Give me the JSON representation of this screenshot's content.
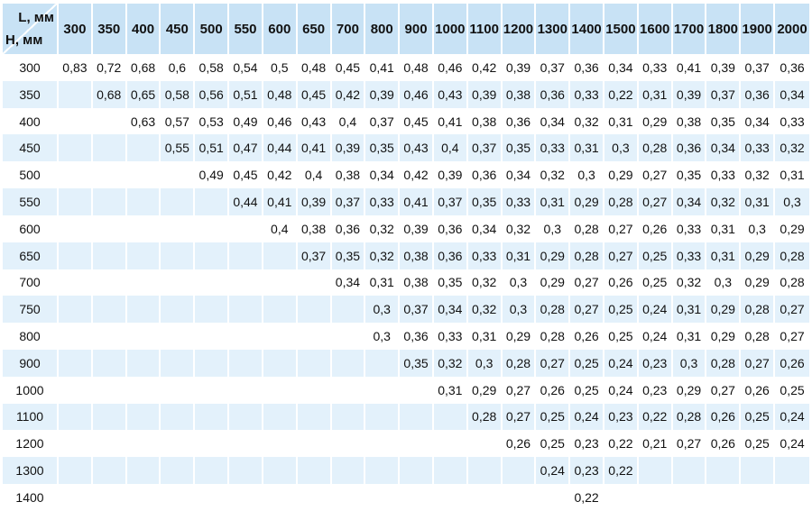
{
  "corner": {
    "col_axis_label": "L, мм",
    "row_axis_label": "Н, мм"
  },
  "colors": {
    "header_bg": "#c8e2f5",
    "stripe_bg": "#e3f1fb",
    "separator": "#ffffff",
    "text": "#111111"
  },
  "chart_data": {
    "type": "table",
    "title": "",
    "col_axis_label": "L, мм",
    "row_axis_label": "Н, мм",
    "columns": [
      "300",
      "350",
      "400",
      "450",
      "500",
      "550",
      "600",
      "650",
      "700",
      "800",
      "900",
      "1000",
      "1100",
      "1200",
      "1300",
      "1400",
      "1500",
      "1600",
      "1700",
      "1800",
      "1900",
      "2000"
    ],
    "rows": [
      {
        "label": "300",
        "values": [
          "0,83",
          "0,72",
          "0,68",
          "0,6",
          "0,58",
          "0,54",
          "0,5",
          "0,48",
          "0,45",
          "0,41",
          "0,48",
          "0,46",
          "0,42",
          "0,39",
          "0,37",
          "0,36",
          "0,34",
          "0,33",
          "0,41",
          "0,39",
          "0,37",
          "0,36"
        ]
      },
      {
        "label": "350",
        "values": [
          "",
          "0,68",
          "0,65",
          "0,58",
          "0,56",
          "0,51",
          "0,48",
          "0,45",
          "0,42",
          "0,39",
          "0,46",
          "0,43",
          "0,39",
          "0,38",
          "0,36",
          "0,33",
          "0,22",
          "0,31",
          "0,39",
          "0,37",
          "0,36",
          "0,34"
        ]
      },
      {
        "label": "400",
        "values": [
          "",
          "",
          "0,63",
          "0,57",
          "0,53",
          "0,49",
          "0,46",
          "0,43",
          "0,4",
          "0,37",
          "0,45",
          "0,41",
          "0,38",
          "0,36",
          "0,34",
          "0,32",
          "0,31",
          "0,29",
          "0,38",
          "0,35",
          "0,34",
          "0,33"
        ]
      },
      {
        "label": "450",
        "values": [
          "",
          "",
          "",
          "0,55",
          "0,51",
          "0,47",
          "0,44",
          "0,41",
          "0,39",
          "0,35",
          "0,43",
          "0,4",
          "0,37",
          "0,35",
          "0,33",
          "0,31",
          "0,3",
          "0,28",
          "0,36",
          "0,34",
          "0,33",
          "0,32"
        ]
      },
      {
        "label": "500",
        "values": [
          "",
          "",
          "",
          "",
          "0,49",
          "0,45",
          "0,42",
          "0,4",
          "0,38",
          "0,34",
          "0,42",
          "0,39",
          "0,36",
          "0,34",
          "0,32",
          "0,3",
          "0,29",
          "0,27",
          "0,35",
          "0,33",
          "0,32",
          "0,31"
        ]
      },
      {
        "label": "550",
        "values": [
          "",
          "",
          "",
          "",
          "",
          "0,44",
          "0,41",
          "0,39",
          "0,37",
          "0,33",
          "0,41",
          "0,37",
          "0,35",
          "0,33",
          "0,31",
          "0,29",
          "0,28",
          "0,27",
          "0,34",
          "0,32",
          "0,31",
          "0,3"
        ]
      },
      {
        "label": "600",
        "values": [
          "",
          "",
          "",
          "",
          "",
          "",
          "0,4",
          "0,38",
          "0,36",
          "0,32",
          "0,39",
          "0,36",
          "0,34",
          "0,32",
          "0,3",
          "0,28",
          "0,27",
          "0,26",
          "0,33",
          "0,31",
          "0,3",
          "0,29"
        ]
      },
      {
        "label": "650",
        "values": [
          "",
          "",
          "",
          "",
          "",
          "",
          "",
          "0,37",
          "0,35",
          "0,32",
          "0,38",
          "0,36",
          "0,33",
          "0,31",
          "0,29",
          "0,28",
          "0,27",
          "0,25",
          "0,33",
          "0,31",
          "0,29",
          "0,28"
        ]
      },
      {
        "label": "700",
        "values": [
          "",
          "",
          "",
          "",
          "",
          "",
          "",
          "",
          "0,34",
          "0,31",
          "0,38",
          "0,35",
          "0,32",
          "0,3",
          "0,29",
          "0,27",
          "0,26",
          "0,25",
          "0,32",
          "0,3",
          "0,29",
          "0,28"
        ]
      },
      {
        "label": "750",
        "values": [
          "",
          "",
          "",
          "",
          "",
          "",
          "",
          "",
          "",
          "0,3",
          "0,37",
          "0,34",
          "0,32",
          "0,3",
          "0,28",
          "0,27",
          "0,25",
          "0,24",
          "0,31",
          "0,29",
          "0,28",
          "0,27"
        ]
      },
      {
        "label": "800",
        "values": [
          "",
          "",
          "",
          "",
          "",
          "",
          "",
          "",
          "",
          "0,3",
          "0,36",
          "0,33",
          "0,31",
          "0,29",
          "0,28",
          "0,26",
          "0,25",
          "0,24",
          "0,31",
          "0,29",
          "0,28",
          "0,27"
        ]
      },
      {
        "label": "900",
        "values": [
          "",
          "",
          "",
          "",
          "",
          "",
          "",
          "",
          "",
          "",
          "0,35",
          "0,32",
          "0,3",
          "0,28",
          "0,27",
          "0,25",
          "0,24",
          "0,23",
          "0,3",
          "0,28",
          "0,27",
          "0,26"
        ]
      },
      {
        "label": "1000",
        "values": [
          "",
          "",
          "",
          "",
          "",
          "",
          "",
          "",
          "",
          "",
          "",
          "0,31",
          "0,29",
          "0,27",
          "0,26",
          "0,25",
          "0,24",
          "0,23",
          "0,29",
          "0,27",
          "0,26",
          "0,25"
        ]
      },
      {
        "label": "1100",
        "values": [
          "",
          "",
          "",
          "",
          "",
          "",
          "",
          "",
          "",
          "",
          "",
          "",
          "0,28",
          "0,27",
          "0,25",
          "0,24",
          "0,23",
          "0,22",
          "0,28",
          "0,26",
          "0,25",
          "0,24"
        ]
      },
      {
        "label": "1200",
        "values": [
          "",
          "",
          "",
          "",
          "",
          "",
          "",
          "",
          "",
          "",
          "",
          "",
          "",
          "0,26",
          "0,25",
          "0,23",
          "0,22",
          "0,21",
          "0,27",
          "0,26",
          "0,25",
          "0,24"
        ]
      },
      {
        "label": "1300",
        "values": [
          "",
          "",
          "",
          "",
          "",
          "",
          "",
          "",
          "",
          "",
          "",
          "",
          "",
          "",
          "0,24",
          "0,23",
          "0,22",
          "",
          "",
          "",
          "",
          ""
        ]
      },
      {
        "label": "1400",
        "values": [
          "",
          "",
          "",
          "",
          "",
          "",
          "",
          "",
          "",
          "",
          "",
          "",
          "",
          "",
          "",
          "0,22",
          "",
          "",
          "",
          "",
          "",
          ""
        ]
      }
    ]
  }
}
